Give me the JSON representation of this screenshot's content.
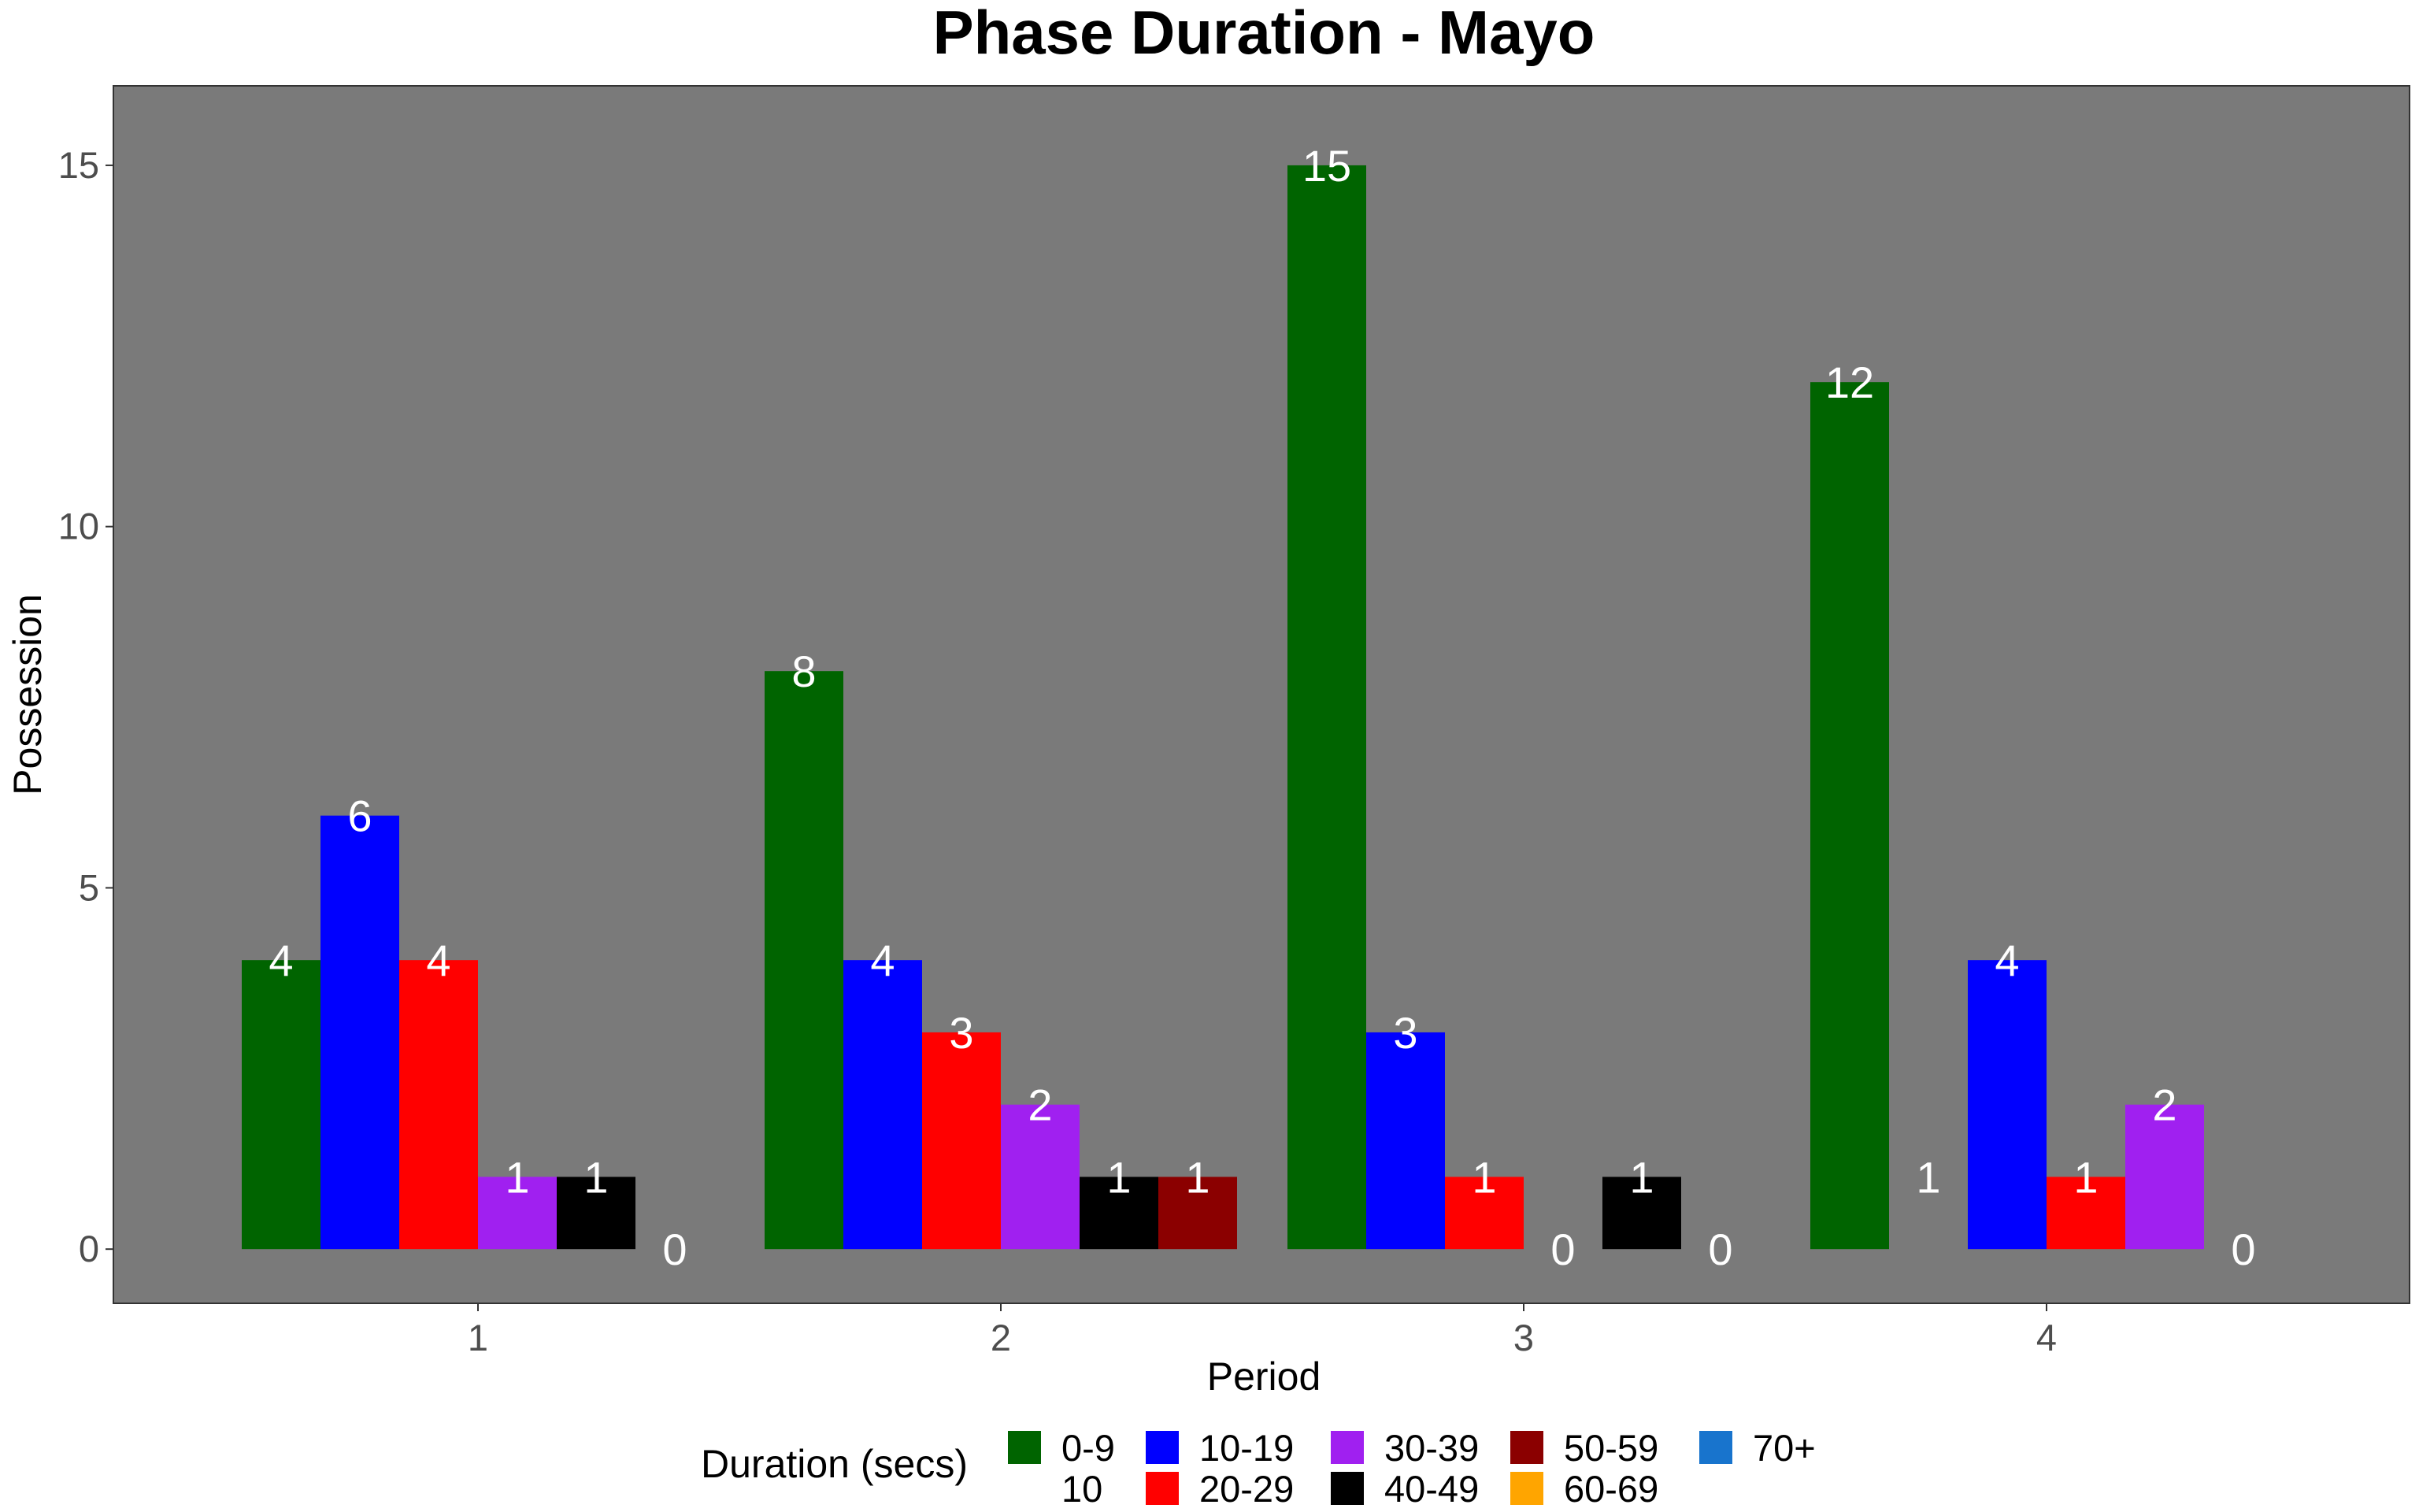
{
  "chart_data": {
    "type": "bar",
    "title": "Phase Duration - Mayo",
    "xlabel": "Period",
    "ylabel": "Possession",
    "categories": [
      "1",
      "2",
      "3",
      "4"
    ],
    "ylim": [
      -0.75,
      16.1
    ],
    "yticks": [
      0,
      5,
      10,
      15
    ],
    "ytick_labels": [
      "0",
      "5",
      "10",
      "15"
    ],
    "grid": false,
    "panel_background": "#7a7a7a",
    "legend": {
      "title": "Duration (secs)",
      "position": "bottom",
      "entries": [
        {
          "label": "0-9",
          "color": "#006400"
        },
        {
          "label": "10",
          "color": "#006400",
          "no_key": true
        },
        {
          "label": "10-19",
          "color": "#0000ff"
        },
        {
          "label": "20-29",
          "color": "#ff0000"
        },
        {
          "label": "30-39",
          "color": "#a020f0"
        },
        {
          "label": "40-49",
          "color": "#000000"
        },
        {
          "label": "50-59",
          "color": "#8b0000"
        },
        {
          "label": "60-69",
          "color": "#ffa500"
        },
        {
          "label": "70+",
          "color": "#1874cd"
        }
      ]
    },
    "series": [
      {
        "name": "0-9",
        "color": "#006400",
        "values": [
          4,
          8,
          15,
          12
        ]
      },
      {
        "name": "10",
        "color": "#006400",
        "values": [
          null,
          null,
          null,
          1
        ],
        "bar_visible": false
      },
      {
        "name": "10-19",
        "color": "#0000ff",
        "values": [
          6,
          4,
          3,
          4
        ]
      },
      {
        "name": "20-29",
        "color": "#ff0000",
        "values": [
          4,
          3,
          1,
          1
        ]
      },
      {
        "name": "30-39",
        "color": "#a020f0",
        "values": [
          1,
          2,
          null,
          2
        ]
      },
      {
        "name": "40-49",
        "color": "#000000",
        "values": [
          1,
          1,
          1,
          null
        ]
      },
      {
        "name": "50-59",
        "color": "#8b0000",
        "values": [
          null,
          1,
          null,
          null
        ]
      }
    ],
    "labels": [
      {
        "text": "4",
        "category": "1",
        "slot": 0,
        "value": 4
      },
      {
        "text": "6",
        "category": "1",
        "slot": 1,
        "value": 6
      },
      {
        "text": "4",
        "category": "1",
        "slot": 2,
        "value": 4
      },
      {
        "text": "1",
        "category": "1",
        "slot": 3,
        "value": 1
      },
      {
        "text": "1",
        "category": "1",
        "slot": 4,
        "value": 1
      },
      {
        "text": "0",
        "category": "1",
        "slot": 5,
        "value": 0
      },
      {
        "text": "8",
        "category": "2",
        "slot": 0,
        "value": 8
      },
      {
        "text": "4",
        "category": "2",
        "slot": 1,
        "value": 4
      },
      {
        "text": "3",
        "category": "2",
        "slot": 2,
        "value": 3
      },
      {
        "text": "2",
        "category": "2",
        "slot": 3,
        "value": 2
      },
      {
        "text": "1",
        "category": "2",
        "slot": 4,
        "value": 1
      },
      {
        "text": "1",
        "category": "2",
        "slot": 5,
        "value": 1
      },
      {
        "text": "15",
        "category": "3",
        "slot": 0,
        "value": 15
      },
      {
        "text": "3",
        "category": "3",
        "slot": 1,
        "value": 3
      },
      {
        "text": "1",
        "category": "3",
        "slot": 2,
        "value": 1
      },
      {
        "text": "0",
        "category": "3",
        "slot": 3,
        "value": 0
      },
      {
        "text": "1",
        "category": "3",
        "slot": 4,
        "value": 1
      },
      {
        "text": "0",
        "category": "3",
        "slot": 5,
        "value": 0
      },
      {
        "text": "12",
        "category": "4",
        "slot": 0,
        "value": 12
      },
      {
        "text": "1",
        "category": "4",
        "slot": 1,
        "value": 1
      },
      {
        "text": "4",
        "category": "4",
        "slot": 2,
        "value": 4
      },
      {
        "text": "1",
        "category": "4",
        "slot": 3,
        "value": 1
      },
      {
        "text": "2",
        "category": "4",
        "slot": 4,
        "value": 2
      },
      {
        "text": "0",
        "category": "4",
        "slot": 5,
        "value": 0
      }
    ],
    "bars": [
      {
        "category": "1",
        "slot": 0,
        "series": "0-9",
        "value": 4
      },
      {
        "category": "1",
        "slot": 1,
        "series": "10-19",
        "value": 6
      },
      {
        "category": "1",
        "slot": 2,
        "series": "20-29",
        "value": 4
      },
      {
        "category": "1",
        "slot": 3,
        "series": "30-39",
        "value": 1
      },
      {
        "category": "1",
        "slot": 4,
        "series": "40-49",
        "value": 1
      },
      {
        "category": "2",
        "slot": 0,
        "series": "0-9",
        "value": 8
      },
      {
        "category": "2",
        "slot": 1,
        "series": "10-19",
        "value": 4
      },
      {
        "category": "2",
        "slot": 2,
        "series": "20-29",
        "value": 3
      },
      {
        "category": "2",
        "slot": 3,
        "series": "30-39",
        "value": 2
      },
      {
        "category": "2",
        "slot": 4,
        "series": "40-49",
        "value": 1
      },
      {
        "category": "2",
        "slot": 5,
        "series": "50-59",
        "value": 1
      },
      {
        "category": "3",
        "slot": 0,
        "series": "0-9",
        "value": 15
      },
      {
        "category": "3",
        "slot": 1,
        "series": "10-19",
        "value": 3
      },
      {
        "category": "3",
        "slot": 2,
        "series": "20-29",
        "value": 1
      },
      {
        "category": "3",
        "slot": 4,
        "series": "40-49",
        "value": 1
      },
      {
        "category": "4",
        "slot": 0,
        "series": "0-9",
        "value": 12
      },
      {
        "category": "4",
        "slot": 2,
        "series": "10-19",
        "value": 4
      },
      {
        "category": "4",
        "slot": 3,
        "series": "20-29",
        "value": 1
      },
      {
        "category": "4",
        "slot": 4,
        "series": "30-39",
        "value": 2
      }
    ]
  }
}
